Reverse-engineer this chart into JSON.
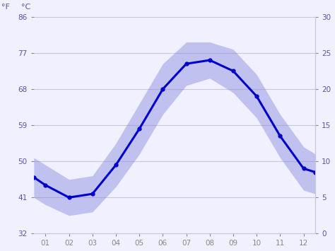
{
  "months": [
    0.5,
    1.0,
    2.0,
    3.0,
    4.0,
    5.0,
    6.0,
    7.0,
    8.0,
    9.0,
    10.0,
    11.0,
    12.0,
    12.5
  ],
  "avg_temp_c": [
    7.8,
    6.7,
    5.0,
    5.5,
    9.5,
    14.5,
    20.0,
    23.5,
    24.0,
    22.5,
    19.0,
    13.5,
    9.0,
    8.5
  ],
  "temp_max_c": [
    10.5,
    9.5,
    7.5,
    8.0,
    12.5,
    18.0,
    23.5,
    26.5,
    26.5,
    25.5,
    22.0,
    16.5,
    12.0,
    11.0
  ],
  "temp_min_c": [
    5.0,
    4.0,
    2.5,
    3.0,
    6.5,
    11.0,
    16.5,
    20.5,
    21.5,
    19.5,
    16.0,
    10.5,
    6.0,
    5.5
  ],
  "x_ticks": [
    1,
    2,
    3,
    4,
    5,
    6,
    7,
    8,
    9,
    10,
    11,
    12
  ],
  "x_tick_labels": [
    "01",
    "02",
    "03",
    "04",
    "05",
    "06",
    "07",
    "08",
    "09",
    "10",
    "11",
    "12"
  ],
  "ylim_c": [
    0,
    30
  ],
  "yticks_c": [
    0,
    5,
    10,
    15,
    20,
    25,
    30
  ],
  "yticks_f": [
    32,
    41,
    50,
    59,
    68,
    77,
    86
  ],
  "line_color": "#0000cc",
  "band_color": "#8888dd",
  "band_alpha": 0.45,
  "bg_color": "#f0f0ff",
  "grid_color": "#c8c8d8",
  "label_color": "#5555aa",
  "tick_color": "#888888",
  "line_width": 2.2,
  "marker_size": 3.5,
  "ylabel_f": "°F",
  "ylabel_c": "°C"
}
